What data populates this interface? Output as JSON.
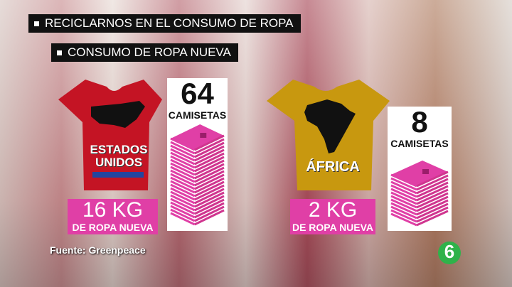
{
  "header": {
    "headline": "RECICLARNOS EN EL CONSUMO DE ROPA",
    "subheadline": "CONSUMO DE ROPA NUEVA"
  },
  "panels": [
    {
      "region_lines": [
        "ESTADOS",
        "UNIDOS"
      ],
      "count": "64",
      "count_unit": "CAMISETAS",
      "weight": "16 KG",
      "weight_note": "DE ROPA NUEVA"
    },
    {
      "region_lines": [
        "ÁFRICA"
      ],
      "count": "8",
      "count_unit": "CAMISETAS",
      "weight": "2 KG",
      "weight_note": "DE ROPA NUEVA"
    }
  ],
  "source": "Fuente: Greenpeace",
  "logo": "6"
}
